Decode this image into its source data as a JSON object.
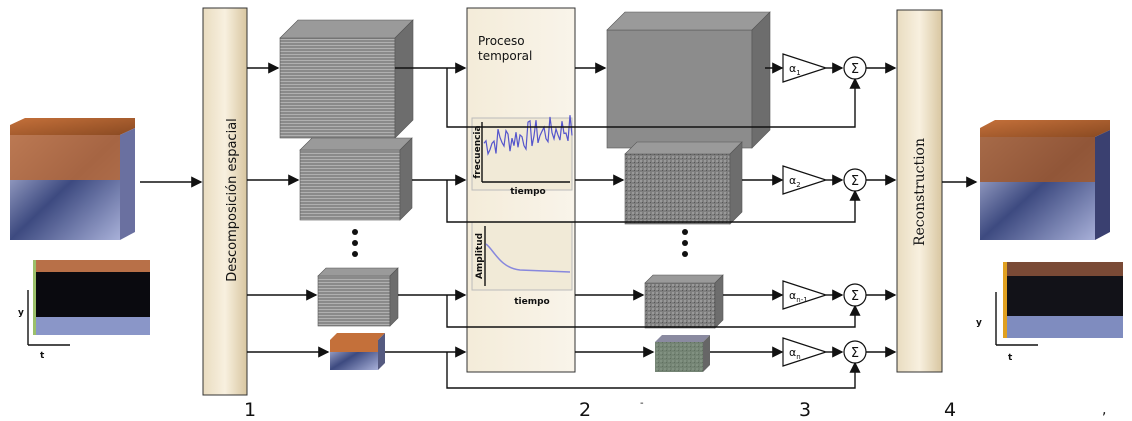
{
  "stages": {
    "decomposition": "Descomposición espacial",
    "temporal": {
      "line1": "Proceso",
      "line2": "temporal"
    },
    "reconstruction": "Reconstruction"
  },
  "plots": [
    {
      "y_label": "frecuencia",
      "x_label": "tiempo"
    },
    {
      "y_label": "Amplitud",
      "x_label": "tiempo"
    }
  ],
  "gains": [
    {
      "symbol": "α",
      "sub": "1"
    },
    {
      "symbol": "α",
      "sub": "2"
    },
    {
      "symbol": "α",
      "sub": "n-1"
    },
    {
      "symbol": "α",
      "sub": "n"
    }
  ],
  "sum_symbol": "Σ",
  "axes": {
    "input": {
      "y": "y",
      "x": "t"
    },
    "output": {
      "y": "y",
      "x": "t"
    }
  },
  "step_numbers": [
    "1",
    "2",
    "3",
    "4"
  ],
  "marks": {
    "dash": "-",
    "comma": ","
  }
}
